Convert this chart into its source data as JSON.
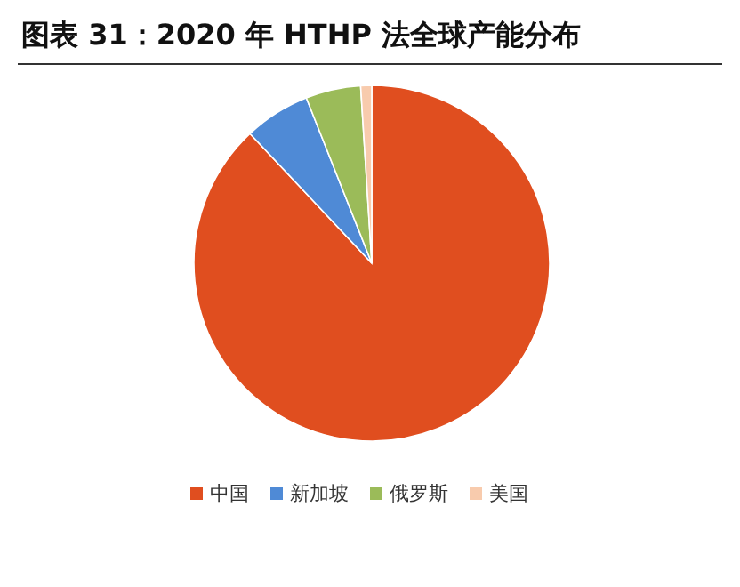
{
  "chart_data": {
    "type": "pie",
    "title": "图表 31：2020 年 HTHP 法全球产能分布",
    "categories": [
      "中国",
      "新加坡",
      "俄罗斯",
      "美国"
    ],
    "values": [
      88,
      6,
      5,
      1
    ],
    "colors": [
      "#e04e1f",
      "#4f8ad6",
      "#9bbb59",
      "#f8cbad"
    ],
    "legend": "bottom"
  }
}
